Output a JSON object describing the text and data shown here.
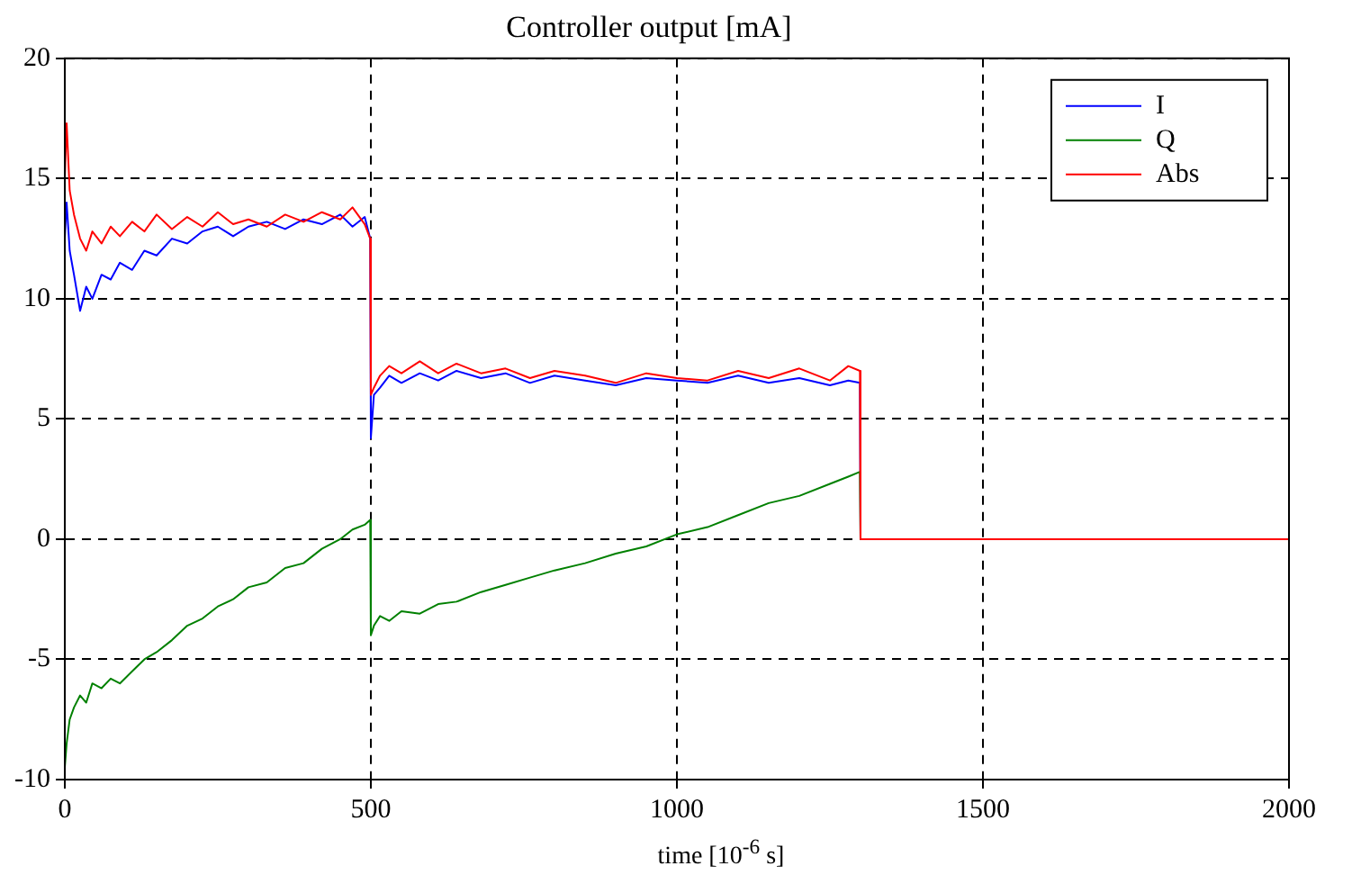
{
  "chart_data": {
    "type": "line",
    "title": "Controller output [mA]",
    "xlabel": "time [10$^{-6}$ s]",
    "x": [
      0,
      3,
      8,
      15,
      25,
      35,
      45,
      60,
      75,
      90,
      110,
      130,
      150,
      175,
      200,
      225,
      250,
      275,
      300,
      330,
      360,
      390,
      420,
      450,
      470,
      490,
      499,
      500,
      505,
      515,
      530,
      550,
      580,
      610,
      640,
      680,
      720,
      760,
      800,
      850,
      900,
      950,
      1000,
      1050,
      1100,
      1150,
      1200,
      1250,
      1280,
      1299,
      1300,
      1400,
      1600,
      1800,
      2000
    ],
    "series": [
      {
        "name": "I",
        "color": "#0000ff",
        "values": [
          12.5,
          14,
          12,
          11,
          9.5,
          10.5,
          10,
          11,
          10.8,
          11.5,
          11.2,
          12,
          11.8,
          12.5,
          12.3,
          12.8,
          13,
          12.6,
          13,
          13.2,
          12.9,
          13.3,
          13.1,
          13.5,
          13,
          13.4,
          12.5,
          4.2,
          6,
          6.3,
          6.8,
          6.5,
          6.9,
          6.6,
          7,
          6.7,
          6.9,
          6.5,
          6.8,
          6.6,
          6.4,
          6.7,
          6.6,
          6.5,
          6.8,
          6.5,
          6.7,
          6.4,
          6.6,
          6.5,
          0,
          null,
          null,
          null,
          null
        ]
      },
      {
        "name": "Q",
        "color": "#008000",
        "values": [
          -9.5,
          -8.5,
          -7.5,
          -7,
          -6.5,
          -6.8,
          -6,
          -6.2,
          -5.8,
          -6,
          -5.5,
          -5,
          -4.7,
          -4.2,
          -3.6,
          -3.3,
          -2.8,
          -2.5,
          -2,
          -1.8,
          -1.2,
          -1,
          -0.4,
          0,
          0.4,
          0.6,
          0.8,
          -4,
          -3.6,
          -3.2,
          -3.4,
          -3,
          -3.1,
          -2.7,
          -2.6,
          -2.2,
          -1.9,
          -1.6,
          -1.3,
          -1,
          -0.6,
          -0.3,
          0.2,
          0.5,
          1,
          1.5,
          1.8,
          2.3,
          2.6,
          2.8,
          0,
          null,
          null,
          null,
          null
        ]
      },
      {
        "name": "Abs",
        "color": "#ff0000",
        "values": [
          15,
          17.3,
          14.5,
          13.5,
          12.5,
          12,
          12.8,
          12.3,
          13,
          12.6,
          13.2,
          12.8,
          13.5,
          12.9,
          13.4,
          13,
          13.6,
          13.1,
          13.3,
          13,
          13.5,
          13.2,
          13.6,
          13.3,
          13.8,
          13.1,
          12.5,
          6,
          6.3,
          6.8,
          7.2,
          6.9,
          7.4,
          6.9,
          7.3,
          6.9,
          7.1,
          6.7,
          7,
          6.8,
          6.5,
          6.9,
          6.7,
          6.6,
          7,
          6.7,
          7.1,
          6.6,
          7.2,
          7,
          0,
          0,
          0,
          0,
          0
        ]
      }
    ],
    "xlim": [
      0,
      2000
    ],
    "xticks": [
      0,
      500,
      1000,
      1500,
      2000
    ],
    "ylim": [
      -10,
      20
    ],
    "yticks": [
      -10,
      -5,
      0,
      5,
      10,
      15,
      20
    ],
    "grid": true,
    "legend": "top right",
    "marker": "none",
    "line_style": "solid"
  }
}
